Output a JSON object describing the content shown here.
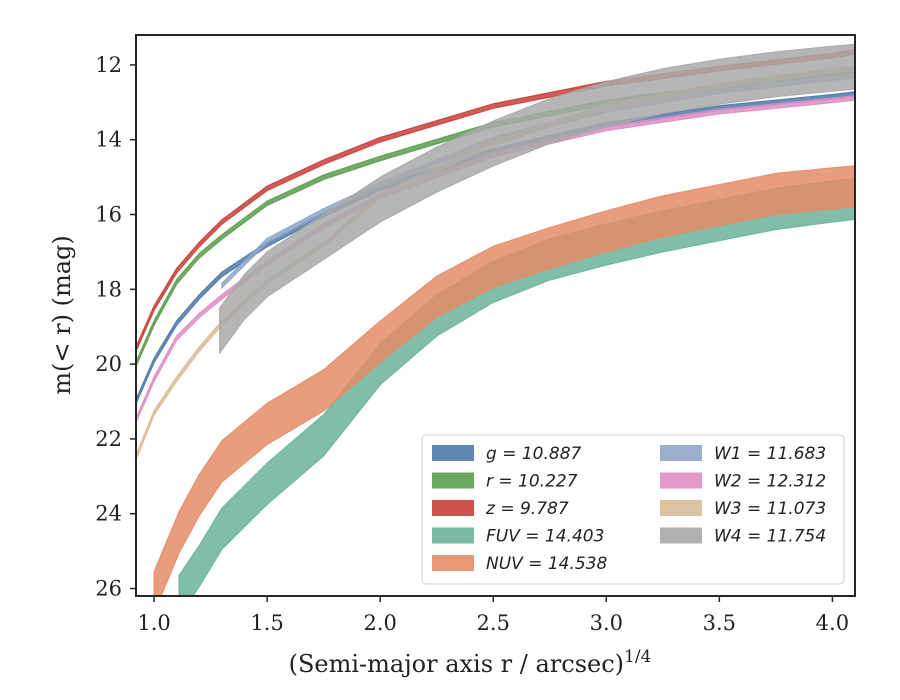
{
  "chart_data": {
    "type": "line",
    "xlabel": "(Semi-major axis r / arcsec)",
    "xlabel_sup": "1/4",
    "ylabel": "m(< r) (mag)",
    "xlim": [
      0.92,
      4.1
    ],
    "ylim": [
      26.2,
      11.2
    ],
    "y_inverted": true,
    "xticks": [
      "1.0",
      "1.5",
      "2.0",
      "2.5",
      "3.0",
      "3.5",
      "4.0"
    ],
    "yticks": [
      "12",
      "14",
      "16",
      "18",
      "20",
      "22",
      "24",
      "26"
    ],
    "grid": false,
    "legend_position": "lower-right",
    "legend_columns": 2,
    "series": [
      {
        "name": "g = 10.887",
        "color": "#4c7aa8",
        "band": 0.06,
        "x": [
          0.92,
          1.0,
          1.1,
          1.2,
          1.3,
          1.5,
          1.75,
          2.0,
          2.5,
          3.0,
          3.5,
          4.0,
          4.1
        ],
        "y": [
          21.0,
          19.9,
          18.9,
          18.2,
          17.6,
          16.8,
          16.0,
          15.3,
          14.3,
          13.6,
          13.15,
          12.85,
          12.78
        ]
      },
      {
        "name": "r = 10.227",
        "color": "#5a9e4e",
        "band": 0.06,
        "x": [
          0.92,
          1.0,
          1.1,
          1.2,
          1.3,
          1.5,
          1.75,
          2.0,
          2.5,
          3.0,
          3.5,
          4.0,
          4.1
        ],
        "y": [
          20.0,
          18.9,
          17.8,
          17.1,
          16.6,
          15.7,
          15.0,
          14.5,
          13.6,
          13.0,
          12.6,
          12.2,
          12.15
        ]
      },
      {
        "name": "z = 9.787",
        "color": "#c9403a",
        "band": 0.06,
        "x": [
          0.92,
          1.0,
          1.1,
          1.2,
          1.3,
          1.5,
          1.75,
          2.0,
          2.5,
          3.0,
          3.5,
          4.0,
          4.1
        ],
        "y": [
          19.6,
          18.5,
          17.5,
          16.8,
          16.2,
          15.3,
          14.6,
          14.0,
          13.1,
          12.5,
          12.1,
          11.75,
          11.65
        ]
      },
      {
        "name": "FUV = 14.403",
        "color": "#6bb39b",
        "band": 0.55,
        "x": [
          1.11,
          1.2,
          1.3,
          1.5,
          1.75,
          2.0,
          2.25,
          2.5,
          2.75,
          3.0,
          3.25,
          3.5,
          3.75,
          4.0,
          4.1
        ],
        "y": [
          26.2,
          25.4,
          24.4,
          23.2,
          21.9,
          20.0,
          18.7,
          17.8,
          17.2,
          16.8,
          16.45,
          16.15,
          15.85,
          15.65,
          15.58
        ]
      },
      {
        "name": "NUV = 14.538",
        "color": "#e58c68",
        "band": 0.55,
        "x": [
          1.0,
          1.11,
          1.2,
          1.3,
          1.5,
          1.75,
          2.0,
          2.25,
          2.5,
          2.75,
          3.0,
          3.25,
          3.5,
          3.75,
          4.0,
          4.1
        ],
        "y": [
          26.1,
          24.5,
          23.5,
          22.6,
          21.6,
          20.7,
          19.4,
          18.2,
          17.4,
          16.9,
          16.45,
          16.05,
          15.75,
          15.45,
          15.3,
          15.25
        ]
      },
      {
        "name": "W1 = 11.683",
        "color": "#8fa6c8",
        "band": 0.06,
        "x": [
          1.3,
          1.5,
          1.75,
          2.0,
          2.25,
          2.5,
          3.0,
          3.5,
          4.0,
          4.1
        ],
        "y": [
          17.9,
          16.7,
          15.9,
          15.2,
          14.6,
          14.0,
          13.2,
          12.7,
          12.35,
          12.3
        ]
      },
      {
        "name": "W2 = 12.312",
        "color": "#dd8ec4",
        "band": 0.06,
        "x": [
          0.92,
          1.0,
          1.1,
          1.2,
          1.3,
          1.5,
          1.75,
          2.0,
          2.5,
          3.0,
          3.5,
          4.0,
          4.1
        ],
        "y": [
          21.5,
          20.4,
          19.3,
          18.7,
          18.2,
          17.3,
          16.3,
          15.5,
          14.4,
          13.7,
          13.25,
          12.95,
          12.88
        ]
      },
      {
        "name": "W3 = 11.073",
        "color": "#d8bd98",
        "band": 0.06,
        "x": [
          0.92,
          1.0,
          1.1,
          1.2,
          1.3,
          1.5,
          1.75,
          2.0,
          2.25,
          2.5,
          3.0,
          3.5,
          4.0,
          4.1
        ],
        "y": [
          22.5,
          21.3,
          20.4,
          19.6,
          18.9,
          17.8,
          16.8,
          15.5,
          14.8,
          14.1,
          13.1,
          12.55,
          12.15,
          12.1
        ]
      },
      {
        "name": "W4 = 11.754",
        "color": "#a9a9a9",
        "band": 0.6,
        "x": [
          1.29,
          1.4,
          1.5,
          1.75,
          2.0,
          2.25,
          2.5,
          2.75,
          3.0,
          3.25,
          3.5,
          3.75,
          4.0,
          4.1
        ],
        "y": [
          19.1,
          18.2,
          17.6,
          16.6,
          15.6,
          14.8,
          14.1,
          13.5,
          13.05,
          12.7,
          12.45,
          12.25,
          12.1,
          12.05
        ]
      }
    ]
  }
}
